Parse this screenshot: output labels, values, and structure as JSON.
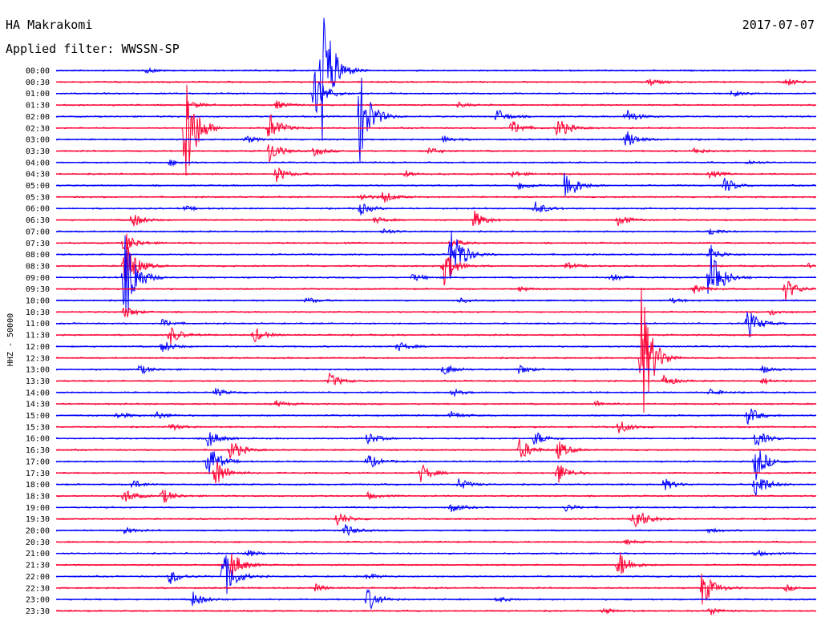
{
  "header": {
    "station": "HA Makrakomi",
    "date": "2017-07-07",
    "filter": "Applied filter: WWSSN-SP"
  },
  "chart_data": {
    "type": "line",
    "title": "HA Makrakomi",
    "subtitle": "Applied filter: WWSSN-SP",
    "date": "2017-07-07",
    "ylabel": "HHZ - 50000",
    "colors": {
      "even_hour": "#0000ff",
      "half_hour": "#ff0033"
    },
    "rows": [
      {
        "label": "00:00",
        "events": [
          {
            "t": 0.12,
            "a": 3
          },
          {
            "t": 0.35,
            "a": 95
          }
        ]
      },
      {
        "label": "00:30",
        "events": [
          {
            "t": 0.78,
            "a": 5
          },
          {
            "t": 0.96,
            "a": 5
          }
        ]
      },
      {
        "label": "01:00",
        "events": [
          {
            "t": 0.34,
            "a": 30
          },
          {
            "t": 0.89,
            "a": 4
          }
        ]
      },
      {
        "label": "01:30",
        "events": [
          {
            "t": 0.18,
            "a": 4
          },
          {
            "t": 0.29,
            "a": 5
          },
          {
            "t": 0.53,
            "a": 3
          }
        ]
      },
      {
        "label": "02:00",
        "events": [
          {
            "t": 0.4,
            "a": 60
          },
          {
            "t": 0.58,
            "a": 10
          },
          {
            "t": 0.75,
            "a": 10
          }
        ]
      },
      {
        "label": "02:30",
        "events": [
          {
            "t": 0.17,
            "a": 85
          },
          {
            "t": 0.28,
            "a": 20
          },
          {
            "t": 0.6,
            "a": 10
          },
          {
            "t": 0.66,
            "a": 15
          }
        ]
      },
      {
        "label": "03:00",
        "events": [
          {
            "t": 0.25,
            "a": 5
          },
          {
            "t": 0.51,
            "a": 5
          },
          {
            "t": 0.75,
            "a": 12
          }
        ]
      },
      {
        "label": "03:30",
        "events": [
          {
            "t": 0.28,
            "a": 15
          },
          {
            "t": 0.34,
            "a": 6
          },
          {
            "t": 0.49,
            "a": 5
          },
          {
            "t": 0.84,
            "a": 4
          }
        ]
      },
      {
        "label": "04:00",
        "events": [
          {
            "t": 0.15,
            "a": 4
          },
          {
            "t": 0.91,
            "a": 3
          }
        ]
      },
      {
        "label": "04:30",
        "events": [
          {
            "t": 0.29,
            "a": 10
          },
          {
            "t": 0.46,
            "a": 4
          },
          {
            "t": 0.6,
            "a": 4
          },
          {
            "t": 0.86,
            "a": 5
          }
        ]
      },
      {
        "label": "05:00",
        "events": [
          {
            "t": 0.61,
            "a": 6
          },
          {
            "t": 0.67,
            "a": 25
          },
          {
            "t": 0.88,
            "a": 10
          }
        ]
      },
      {
        "label": "05:30",
        "events": [
          {
            "t": 0.4,
            "a": 5
          },
          {
            "t": 0.43,
            "a": 8
          }
        ]
      },
      {
        "label": "06:00",
        "events": [
          {
            "t": 0.17,
            "a": 3
          },
          {
            "t": 0.4,
            "a": 8
          },
          {
            "t": 0.63,
            "a": 10
          }
        ]
      },
      {
        "label": "06:30",
        "events": [
          {
            "t": 0.1,
            "a": 10
          },
          {
            "t": 0.42,
            "a": 4
          },
          {
            "t": 0.55,
            "a": 12
          },
          {
            "t": 0.74,
            "a": 8
          }
        ]
      },
      {
        "label": "07:00",
        "events": [
          {
            "t": 0.43,
            "a": 4
          },
          {
            "t": 0.86,
            "a": 5
          }
        ]
      },
      {
        "label": "07:30",
        "events": [
          {
            "t": 0.09,
            "a": 15
          },
          {
            "t": 0.52,
            "a": 6
          }
        ]
      },
      {
        "label": "08:00",
        "events": [
          {
            "t": 0.52,
            "a": 45
          },
          {
            "t": 0.86,
            "a": 10
          }
        ]
      },
      {
        "label": "08:30",
        "events": [
          {
            "t": 0.09,
            "a": 40
          },
          {
            "t": 0.51,
            "a": 25
          },
          {
            "t": 0.67,
            "a": 5
          },
          {
            "t": 0.99,
            "a": 3
          }
        ]
      },
      {
        "label": "09:00",
        "events": [
          {
            "t": 0.09,
            "a": 70
          },
          {
            "t": 0.47,
            "a": 5
          },
          {
            "t": 0.73,
            "a": 6
          },
          {
            "t": 0.86,
            "a": 50
          }
        ]
      },
      {
        "label": "09:30",
        "events": [
          {
            "t": 0.61,
            "a": 3
          },
          {
            "t": 0.84,
            "a": 6
          },
          {
            "t": 0.96,
            "a": 15
          }
        ]
      },
      {
        "label": "10:00",
        "events": [
          {
            "t": 0.33,
            "a": 4
          },
          {
            "t": 0.53,
            "a": 3
          },
          {
            "t": 0.81,
            "a": 3
          }
        ]
      },
      {
        "label": "10:30",
        "events": [
          {
            "t": 0.09,
            "a": 8
          },
          {
            "t": 0.94,
            "a": 4
          }
        ]
      },
      {
        "label": "11:00",
        "events": [
          {
            "t": 0.14,
            "a": 5
          },
          {
            "t": 0.91,
            "a": 20
          }
        ]
      },
      {
        "label": "11:30",
        "events": [
          {
            "t": 0.15,
            "a": 12
          },
          {
            "t": 0.26,
            "a": 10
          }
        ]
      },
      {
        "label": "12:00",
        "events": [
          {
            "t": 0.14,
            "a": 8
          },
          {
            "t": 0.45,
            "a": 6
          }
        ]
      },
      {
        "label": "12:30",
        "events": [
          {
            "t": 0.77,
            "a": 95
          }
        ]
      },
      {
        "label": "13:00",
        "events": [
          {
            "t": 0.11,
            "a": 6
          },
          {
            "t": 0.51,
            "a": 8
          },
          {
            "t": 0.61,
            "a": 6
          },
          {
            "t": 0.93,
            "a": 5
          }
        ]
      },
      {
        "label": "13:30",
        "events": [
          {
            "t": 0.36,
            "a": 10
          },
          {
            "t": 0.8,
            "a": 8
          },
          {
            "t": 0.93,
            "a": 4
          }
        ]
      },
      {
        "label": "14:00",
        "events": [
          {
            "t": 0.21,
            "a": 5
          },
          {
            "t": 0.52,
            "a": 5
          },
          {
            "t": 0.86,
            "a": 5
          }
        ]
      },
      {
        "label": "14:30",
        "events": [
          {
            "t": 0.29,
            "a": 4
          },
          {
            "t": 0.71,
            "a": 4
          }
        ]
      },
      {
        "label": "15:00",
        "events": [
          {
            "t": 0.08,
            "a": 5
          },
          {
            "t": 0.13,
            "a": 6
          },
          {
            "t": 0.52,
            "a": 5
          },
          {
            "t": 0.91,
            "a": 12
          }
        ]
      },
      {
        "label": "15:30",
        "events": [
          {
            "t": 0.15,
            "a": 5
          },
          {
            "t": 0.74,
            "a": 10
          }
        ]
      },
      {
        "label": "16:00",
        "events": [
          {
            "t": 0.2,
            "a": 12
          },
          {
            "t": 0.41,
            "a": 8
          },
          {
            "t": 0.63,
            "a": 10
          },
          {
            "t": 0.92,
            "a": 12
          }
        ]
      },
      {
        "label": "16:30",
        "events": [
          {
            "t": 0.23,
            "a": 15
          },
          {
            "t": 0.61,
            "a": 15
          },
          {
            "t": 0.66,
            "a": 12
          }
        ]
      },
      {
        "label": "17:00",
        "events": [
          {
            "t": 0.2,
            "a": 25
          },
          {
            "t": 0.41,
            "a": 10
          },
          {
            "t": 0.92,
            "a": 25
          }
        ]
      },
      {
        "label": "17:30",
        "events": [
          {
            "t": 0.21,
            "a": 20
          },
          {
            "t": 0.48,
            "a": 12
          },
          {
            "t": 0.66,
            "a": 15
          }
        ]
      },
      {
        "label": "18:00",
        "events": [
          {
            "t": 0.1,
            "a": 6
          },
          {
            "t": 0.53,
            "a": 8
          },
          {
            "t": 0.8,
            "a": 8
          },
          {
            "t": 0.92,
            "a": 20
          }
        ]
      },
      {
        "label": "18:30",
        "events": [
          {
            "t": 0.09,
            "a": 10
          },
          {
            "t": 0.14,
            "a": 10
          },
          {
            "t": 0.41,
            "a": 4
          }
        ]
      },
      {
        "label": "19:00",
        "events": [
          {
            "t": 0.52,
            "a": 6
          },
          {
            "t": 0.67,
            "a": 5
          }
        ]
      },
      {
        "label": "19:30",
        "events": [
          {
            "t": 0.37,
            "a": 10
          },
          {
            "t": 0.76,
            "a": 20
          }
        ]
      },
      {
        "label": "20:00",
        "events": [
          {
            "t": 0.09,
            "a": 4
          },
          {
            "t": 0.38,
            "a": 8
          },
          {
            "t": 0.86,
            "a": 3
          }
        ]
      },
      {
        "label": "20:30",
        "events": [
          {
            "t": 0.75,
            "a": 3
          }
        ]
      },
      {
        "label": "21:00",
        "events": [
          {
            "t": 0.25,
            "a": 5
          },
          {
            "t": 0.92,
            "a": 4
          }
        ]
      },
      {
        "label": "21:30",
        "events": [
          {
            "t": 0.23,
            "a": 20
          },
          {
            "t": 0.74,
            "a": 20
          }
        ]
      },
      {
        "label": "22:00",
        "events": [
          {
            "t": 0.15,
            "a": 10
          },
          {
            "t": 0.22,
            "a": 35
          },
          {
            "t": 0.41,
            "a": 4
          }
        ]
      },
      {
        "label": "22:30",
        "events": [
          {
            "t": 0.34,
            "a": 5
          },
          {
            "t": 0.85,
            "a": 25
          },
          {
            "t": 0.96,
            "a": 4
          }
        ]
      },
      {
        "label": "23:00",
        "events": [
          {
            "t": 0.18,
            "a": 10
          },
          {
            "t": 0.41,
            "a": 15
          },
          {
            "t": 0.58,
            "a": 4
          }
        ]
      },
      {
        "label": "23:30",
        "events": [
          {
            "t": 0.72,
            "a": 4
          },
          {
            "t": 0.86,
            "a": 6
          }
        ]
      }
    ]
  }
}
